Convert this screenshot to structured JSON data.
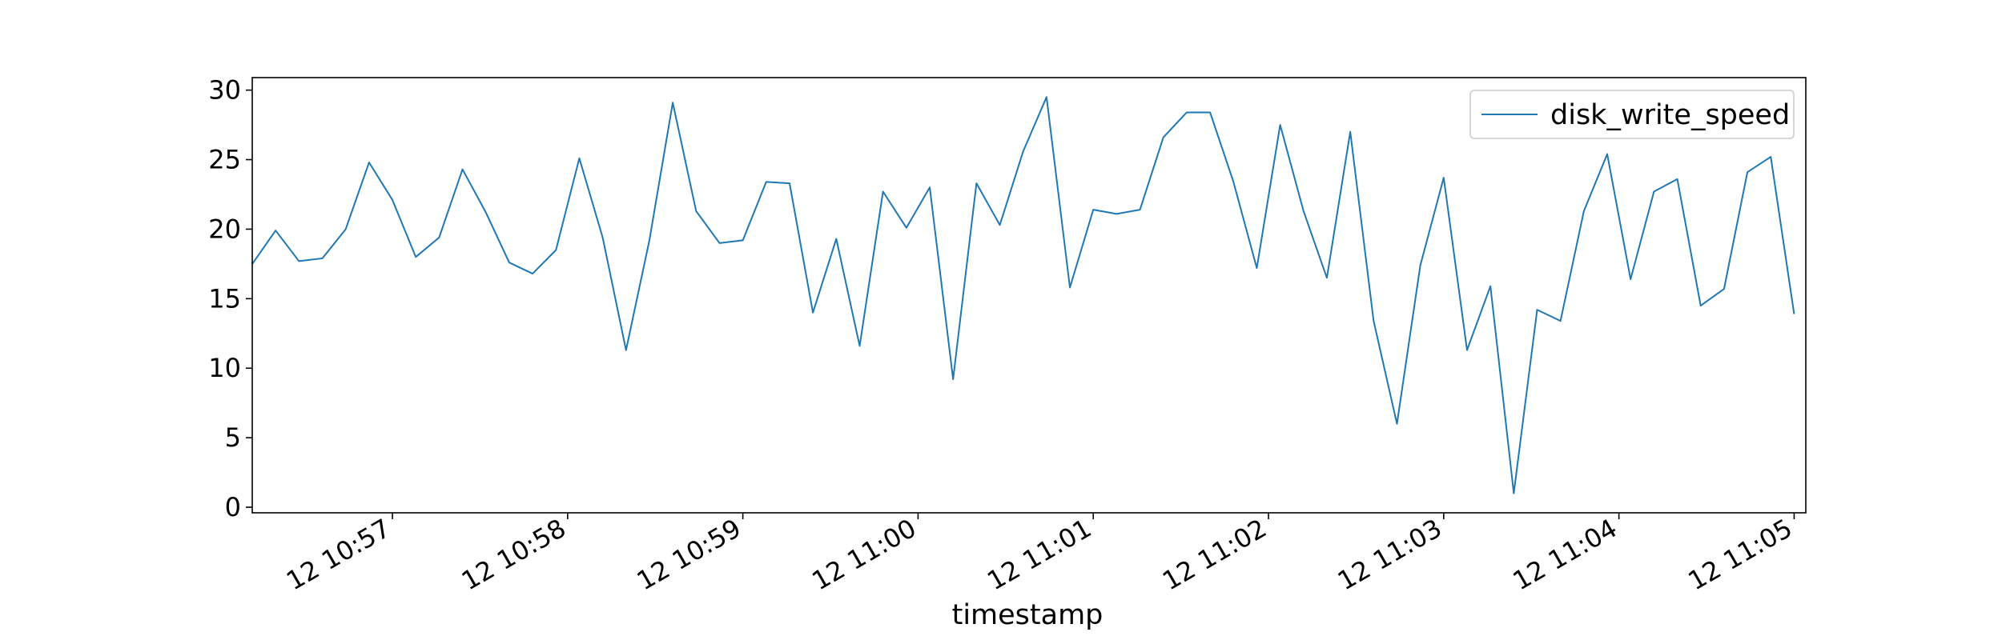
{
  "chart_data": {
    "type": "line",
    "title": "",
    "xlabel": "timestamp",
    "ylabel": "",
    "x_unit": "time (seconds)",
    "x_start": "12 10:56:12",
    "x_step_seconds": 8,
    "xlim": [
      "12 10:56:12",
      "12 11:05:04"
    ],
    "ylim": [
      -0.4,
      30.9
    ],
    "xticks": [
      {
        "t": "12 10:57",
        "label": "12 10:57"
      },
      {
        "t": "12 10:58",
        "label": "12 10:58"
      },
      {
        "t": "12 10:59",
        "label": "12 10:59"
      },
      {
        "t": "12 11:00",
        "label": "12 11:00"
      },
      {
        "t": "12 11:01",
        "label": "12 11:01"
      },
      {
        "t": "12 11:02",
        "label": "12 11:02"
      },
      {
        "t": "12 11:03",
        "label": "12 11:03"
      },
      {
        "t": "12 11:04",
        "label": "12 11:04"
      },
      {
        "t": "12 11:05",
        "label": "12 11:05"
      }
    ],
    "yticks": [
      0,
      5,
      10,
      15,
      20,
      25,
      30
    ],
    "grid": false,
    "legend": {
      "position": "top-right",
      "entries": [
        "disk_write_speed"
      ]
    },
    "series": [
      {
        "name": "disk_write_speed",
        "color": "#1f77b4",
        "values": [
          17.5,
          19.9,
          17.7,
          17.9,
          20.0,
          24.8,
          22.1,
          18.0,
          19.4,
          24.3,
          21.2,
          17.6,
          16.8,
          18.5,
          25.1,
          19.4,
          11.3,
          19.2,
          29.1,
          21.3,
          19.0,
          19.2,
          23.4,
          23.3,
          14.0,
          19.3,
          11.6,
          22.7,
          20.1,
          23.0,
          9.2,
          23.3,
          20.3,
          25.6,
          29.5,
          15.8,
          21.4,
          21.1,
          21.4,
          26.6,
          28.4,
          28.4,
          23.4,
          17.2,
          27.5,
          21.3,
          16.5,
          27.0,
          13.4,
          6.0,
          17.4,
          23.7,
          11.3,
          15.9,
          1.0,
          14.2,
          13.4,
          21.3,
          25.4,
          16.4,
          22.7,
          23.6,
          14.5,
          15.7,
          24.1,
          25.2,
          13.9
        ]
      }
    ]
  }
}
